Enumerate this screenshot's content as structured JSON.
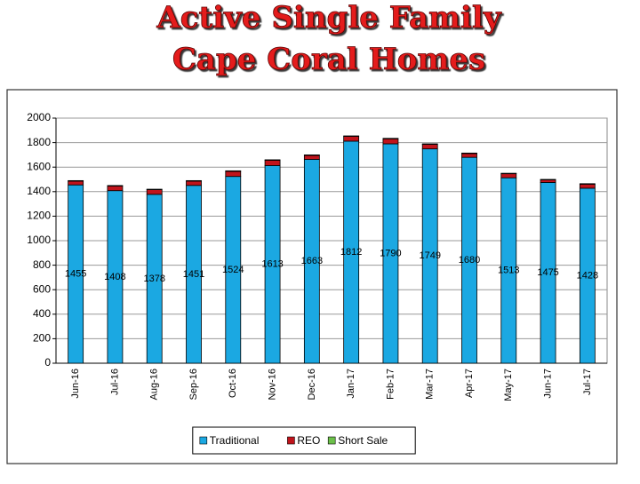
{
  "chart_data": {
    "type": "stacked-bar",
    "title": [
      "Active Single Family",
      "Cape Coral Homes"
    ],
    "categories": [
      "Jun-16",
      "Jul-16",
      "Aug-16",
      "Sep-16",
      "Oct-16",
      "Nov-16",
      "Dec-16",
      "Jan-17",
      "Feb-17",
      "Mar-17",
      "Apr-17",
      "May-17",
      "Jun-17",
      "Jul-17"
    ],
    "series": [
      {
        "name": "Traditional",
        "color": "#1ba8e2",
        "values": [
          1455,
          1408,
          1378,
          1451,
          1524,
          1613,
          1663,
          1812,
          1790,
          1749,
          1680,
          1513,
          1475,
          1428
        ],
        "show_labels": true
      },
      {
        "name": "REO",
        "color": "#c0141c",
        "values": [
          31,
          38,
          38,
          35,
          42,
          43,
          33,
          39,
          41,
          37,
          31,
          33,
          21,
          33
        ]
      },
      {
        "name": "Short Sale",
        "color": "#6cc04a",
        "values": [
          4,
          4,
          4,
          4,
          4,
          4,
          4,
          4,
          4,
          4,
          4,
          4,
          4,
          4
        ]
      }
    ],
    "ylim": [
      0,
      2000
    ],
    "yticks": [
      0,
      200,
      400,
      600,
      800,
      1000,
      1200,
      1400,
      1600,
      1800,
      2000
    ],
    "grid": true,
    "legend": "bottom"
  }
}
